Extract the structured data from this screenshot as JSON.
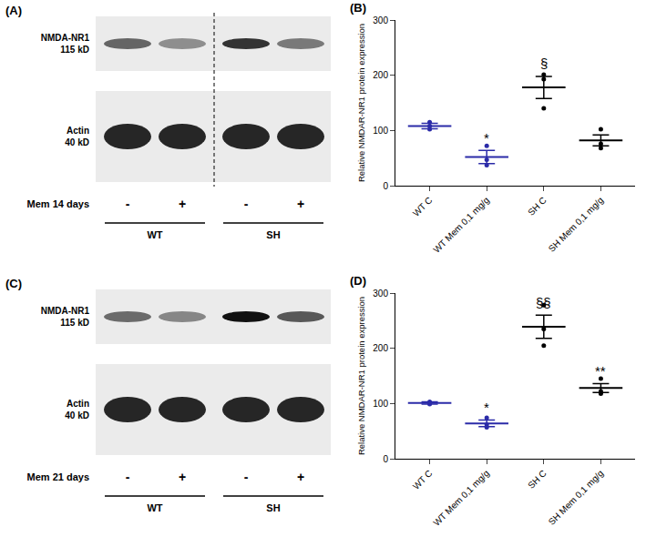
{
  "chart_data": [
    {
      "type": "scatter",
      "title": "(B)",
      "categories": [
        "WT C",
        "WT Mem 0,1 mg/g",
        "SH C",
        "SH Mem 0,1 mg/g"
      ],
      "values": [
        108,
        52,
        178,
        82
      ],
      "error": [
        5,
        12,
        20,
        10
      ],
      "points": [
        [
          102,
          108,
          115
        ],
        [
          37,
          47,
          72
        ],
        [
          140,
          193,
          201
        ],
        [
          68,
          76,
          102
        ]
      ],
      "annotations": [
        null,
        "*",
        "§",
        null
      ],
      "colors": [
        "#2b2ba8",
        "#2b2ba8",
        "#000000",
        "#000000"
      ],
      "ylabel": "Relative NMDAR-NR1 protein expression",
      "ylim": [
        0,
        300
      ],
      "yticks": [
        0,
        100,
        200,
        300
      ],
      "grid": false
    },
    {
      "type": "scatter",
      "title": "(D)",
      "categories": [
        "WT C",
        "WT Mem 0,1 mg/g",
        "SH C",
        "SH Mem 0,1 mg/g"
      ],
      "values": [
        101,
        64,
        239,
        128
      ],
      "error": [
        2,
        6,
        21,
        8
      ],
      "points": [
        [
          99,
          101,
          103
        ],
        [
          57,
          62,
          74
        ],
        [
          205,
          235,
          278
        ],
        [
          118,
          122,
          145
        ]
      ],
      "annotations": [
        null,
        "*",
        "§§",
        "**"
      ],
      "colors": [
        "#2b2ba8",
        "#2b2ba8",
        "#000000",
        "#000000"
      ],
      "ylabel": "Relative NMDAR-NR1 protein expression",
      "ylim": [
        0,
        300
      ],
      "yticks": [
        0,
        100,
        200,
        300
      ],
      "grid": false
    }
  ],
  "blots": [
    {
      "title": "(A)",
      "bands": [
        {
          "name": "NMDA-NR1",
          "size": "115 kD"
        },
        {
          "name": "Actin",
          "size": "40 kD"
        }
      ],
      "treatment": "Mem 14 days",
      "lanes": [
        "-",
        "+",
        "-",
        "+"
      ],
      "groups": [
        "WT",
        "SH"
      ]
    },
    {
      "title": "(C)",
      "bands": [
        {
          "name": "NMDA-NR1",
          "size": "115 kD"
        },
        {
          "name": "Actin",
          "size": "40 kD"
        }
      ],
      "treatment": "Mem 21 days",
      "lanes": [
        "-",
        "+",
        "-",
        "+"
      ],
      "groups": [
        "WT",
        "SH"
      ]
    }
  ]
}
